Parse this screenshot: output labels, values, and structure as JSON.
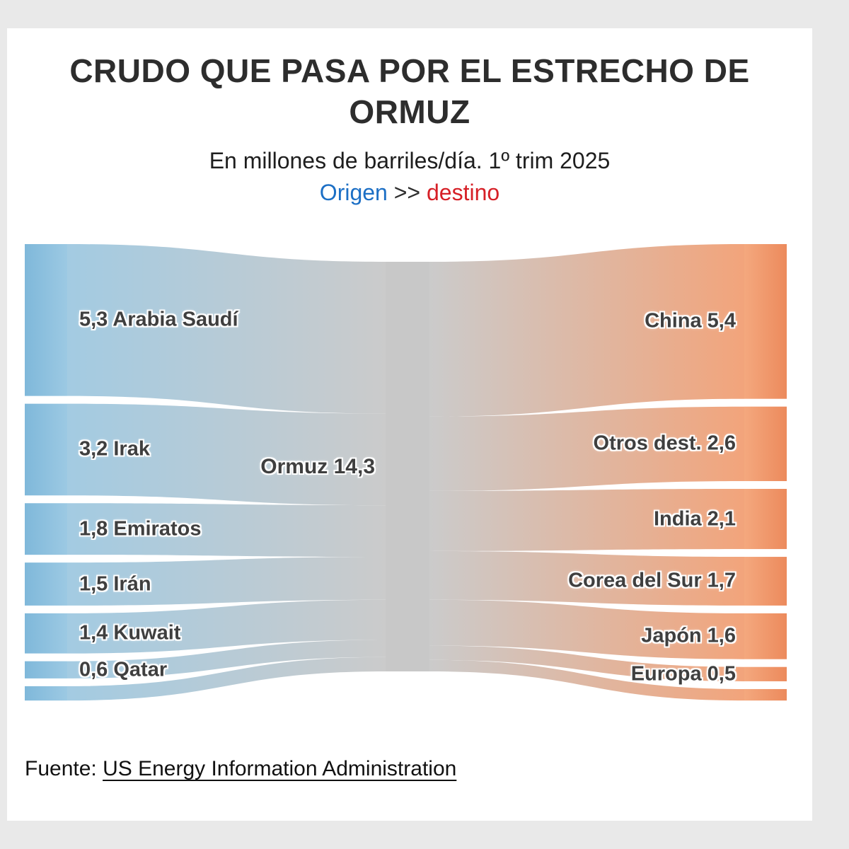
{
  "page": {
    "background": "#e9e9e9",
    "card_background": "#ffffff"
  },
  "chart_data": {
    "type": "sankey",
    "title": "CRUDO QUE PASA POR EL ESTRECHO DE ORMUZ",
    "subtitle": "En millones de barriles/día. 1º trim 2025",
    "legend": {
      "origen_label": "Origen",
      "separator": ">>",
      "destino_label": "destino",
      "origen_color": "#1c6fc5",
      "destino_color": "#d62027"
    },
    "center_node": {
      "name": "Ormuz",
      "value": 14.3,
      "label": "Ormuz 14,3"
    },
    "origins": [
      {
        "name": "Arabia Saudí",
        "value": 5.3,
        "label": "5,3 Arabia Saudí"
      },
      {
        "name": "Irak",
        "value": 3.2,
        "label": "3,2 Irak"
      },
      {
        "name": "Emiratos",
        "value": 1.8,
        "label": "1,8 Emiratos"
      },
      {
        "name": "Irán",
        "value": 1.5,
        "label": "1,5 Irán"
      },
      {
        "name": "Kuwait",
        "value": 1.4,
        "label": "1,4 Kuwait"
      },
      {
        "name": "Qatar",
        "value": 0.6,
        "label": "0,6 Qatar"
      },
      {
        "name": "",
        "value": 0.5,
        "label": ""
      }
    ],
    "destinations": [
      {
        "name": "China",
        "value": 5.4,
        "label": "China 5,4"
      },
      {
        "name": "Otros dest.",
        "value": 2.6,
        "label": "Otros dest. 2,6"
      },
      {
        "name": "India",
        "value": 2.1,
        "label": "India 2,1"
      },
      {
        "name": "Corea del Sur",
        "value": 1.7,
        "label": "Corea del Sur 1,7"
      },
      {
        "name": "Japón",
        "value": 1.6,
        "label": "Japón 1,6"
      },
      {
        "name": "Europa",
        "value": 0.5,
        "label": "Europa 0,5"
      },
      {
        "name": "",
        "value": 0.4,
        "label": ""
      }
    ],
    "colors": {
      "origin_bar_start": "#7fb8da",
      "origin_bar_end": "#9cc9e3",
      "origin_flow": "#a3cbe2",
      "neutral": "#cbcbcb",
      "center_band": "#c8c8c8",
      "dest_flow": "#f2a47b",
      "dest_bar_start": "#f4a87e",
      "dest_bar_end": "#ec8a5c"
    },
    "layout": {
      "direction": "left-to-right",
      "origins_side": "left",
      "destinations_side": "right",
      "legend_position": "top-center"
    }
  },
  "footer": {
    "prefix": "Fuente: ",
    "source": "US Energy Information Administration"
  }
}
